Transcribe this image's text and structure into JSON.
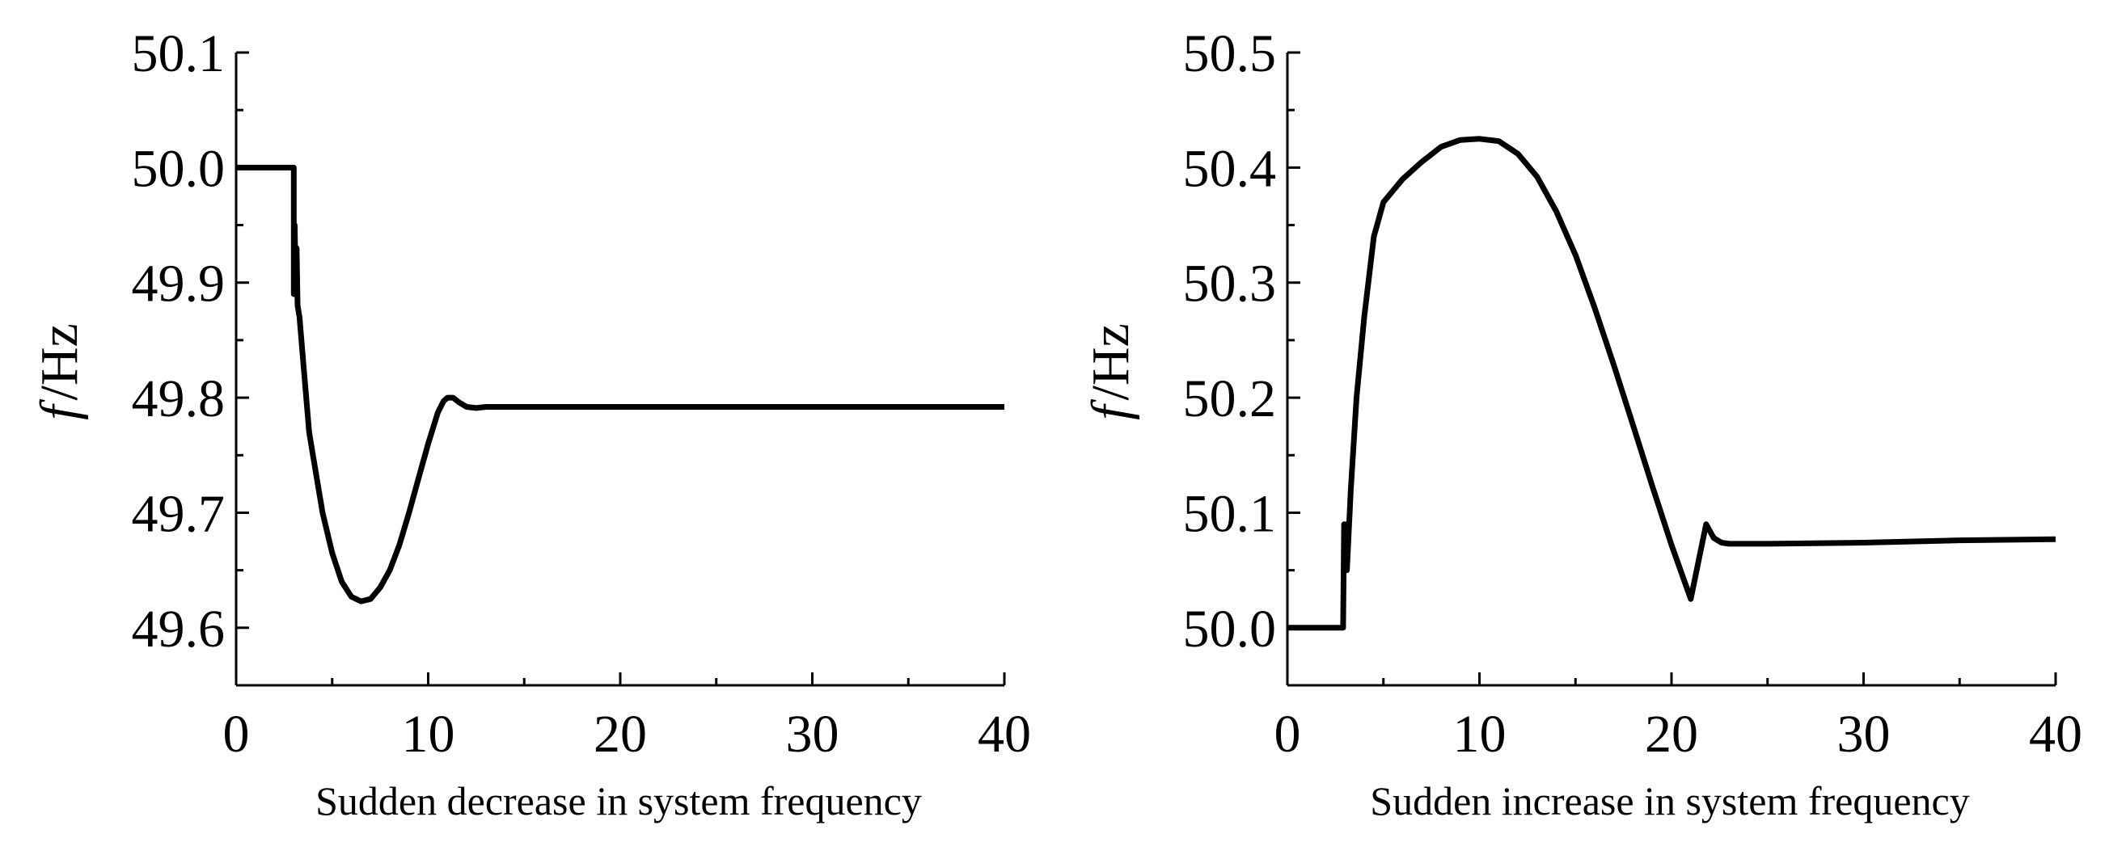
{
  "chart_data": [
    {
      "type": "line",
      "xlabel": "Sudden decrease in system frequency",
      "ylabel": "f /Hz",
      "ylabel_italic": "f",
      "ylabel_unit": "/Hz",
      "xlim": [
        0,
        40
      ],
      "ylim": [
        49.55,
        50.1
      ],
      "xticks": [
        0,
        10,
        20,
        30,
        40
      ],
      "yticks": [
        49.6,
        49.7,
        49.8,
        49.9,
        50.0,
        50.1
      ],
      "ytick_labels": [
        "49.6",
        "49.7",
        "49.8",
        "49.9",
        "50.0",
        "50.1"
      ],
      "xtick_labels": [
        "0",
        "10",
        "20",
        "30",
        "40"
      ],
      "grid": false,
      "line_color": "#000000",
      "series": [
        {
          "x": [
            0,
            3.0,
            3.0,
            3.05,
            3.1,
            3.15,
            3.2,
            3.3,
            3.5,
            3.8,
            4.0,
            4.5,
            5.0,
            5.5,
            6.0,
            6.5,
            7.0,
            7.5,
            8.0,
            8.5,
            9.0,
            9.5,
            10.0,
            10.5,
            10.8,
            11.0,
            11.3,
            11.6,
            12.0,
            12.5,
            13.0,
            15,
            20,
            25,
            30,
            35,
            40
          ],
          "y": [
            50.0,
            50.0,
            49.89,
            49.95,
            49.9,
            49.93,
            49.88,
            49.87,
            49.83,
            49.77,
            49.75,
            49.7,
            49.665,
            49.64,
            49.627,
            49.623,
            49.625,
            49.635,
            49.65,
            49.672,
            49.7,
            49.73,
            49.76,
            49.787,
            49.797,
            49.8,
            49.8,
            49.796,
            49.792,
            49.791,
            49.792,
            49.792,
            49.792,
            49.792,
            49.792,
            49.792,
            49.792
          ]
        }
      ]
    },
    {
      "type": "line",
      "xlabel": "Sudden increase in system frequency",
      "ylabel": "f /Hz",
      "ylabel_italic": "f",
      "ylabel_unit": "/Hz",
      "xlim": [
        0,
        40
      ],
      "ylim": [
        49.95,
        50.5
      ],
      "xticks": [
        0,
        10,
        20,
        30,
        40
      ],
      "yticks": [
        50.0,
        50.1,
        50.2,
        50.3,
        50.4,
        50.5
      ],
      "ytick_labels": [
        "50.0",
        "50.1",
        "50.2",
        "50.3",
        "50.4",
        "50.5"
      ],
      "xtick_labels": [
        "0",
        "10",
        "20",
        "30",
        "40"
      ],
      "grid": false,
      "line_color": "#000000",
      "series": [
        {
          "x": [
            0,
            2.9,
            2.9,
            2.95,
            3.0,
            3.05,
            3.1,
            3.3,
            3.6,
            4.0,
            4.5,
            5.0,
            6.0,
            7.0,
            8.0,
            9.0,
            10.0,
            11.0,
            12.0,
            13.0,
            14.0,
            15.0,
            16.0,
            17.0,
            18.0,
            19.0,
            20.0,
            21.0,
            21.8,
            22.2,
            22.6,
            23.0,
            25,
            30,
            35,
            40
          ],
          "y": [
            50.0,
            50.0,
            50.0,
            50.09,
            50.06,
            50.09,
            50.05,
            50.12,
            50.2,
            50.27,
            50.34,
            50.37,
            50.39,
            50.405,
            50.418,
            50.424,
            50.425,
            50.423,
            50.412,
            50.392,
            50.362,
            50.324,
            50.278,
            50.228,
            50.176,
            50.123,
            50.072,
            50.025,
            50.09,
            50.078,
            50.074,
            50.073,
            50.073,
            50.074,
            50.076,
            50.077
          ]
        }
      ]
    }
  ]
}
